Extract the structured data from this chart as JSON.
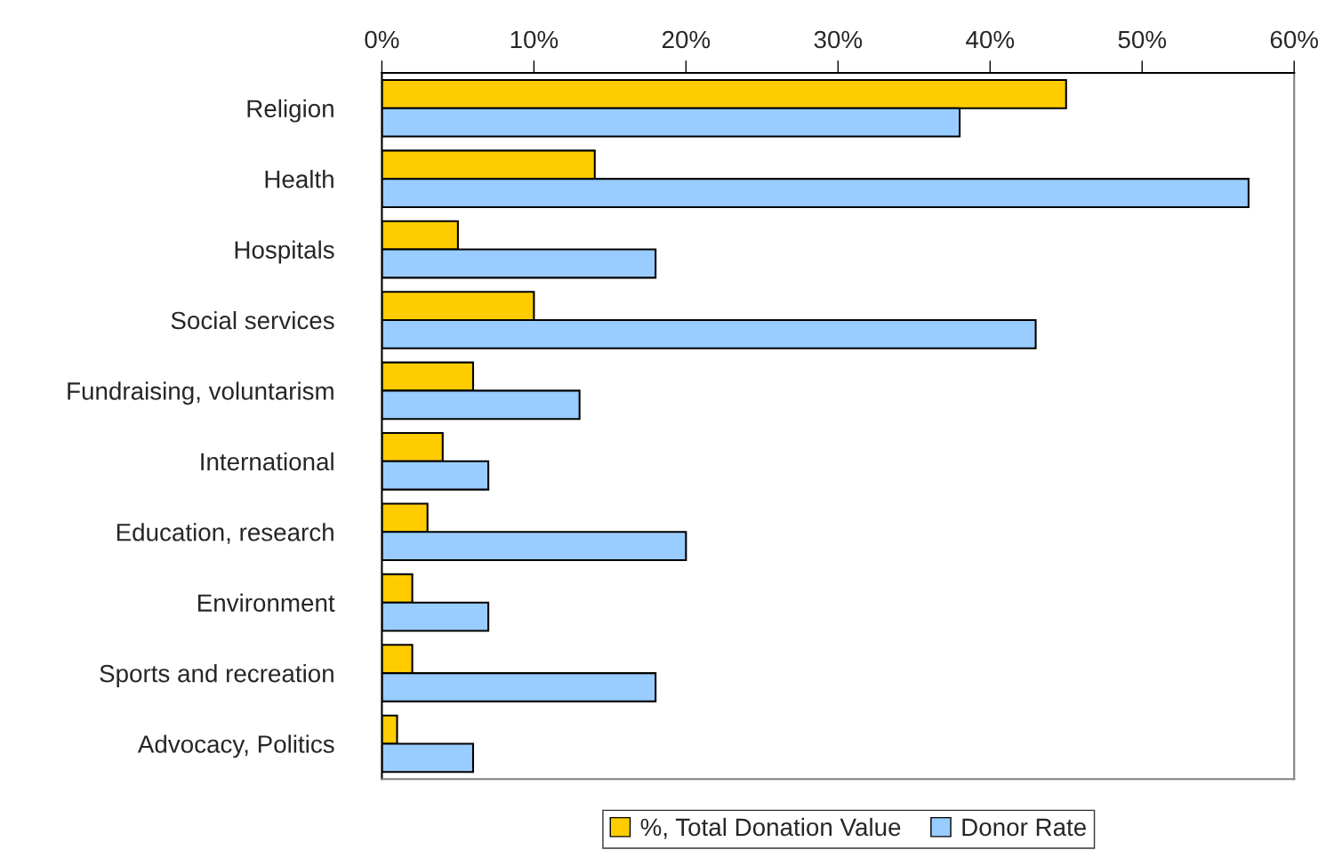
{
  "chart_data": {
    "type": "bar",
    "orientation": "horizontal",
    "categories": [
      "Religion",
      "Health",
      "Hospitals",
      "Social services",
      "Fundraising, voluntarism",
      "International",
      "Education, research",
      "Environment",
      "Sports and recreation",
      "Advocacy, Politics"
    ],
    "series": [
      {
        "name": "%, Total Donation Value",
        "color": "#ffcc00",
        "values": [
          45,
          14,
          5,
          10,
          6,
          4,
          3,
          2,
          2,
          1
        ]
      },
      {
        "name": "Donor Rate",
        "color": "#99ccff",
        "values": [
          38,
          57,
          18,
          43,
          13,
          7,
          20,
          7,
          18,
          6
        ]
      }
    ],
    "xlim": [
      0,
      60
    ],
    "xticks": [
      {
        "value": 0,
        "label": "0%"
      },
      {
        "value": 10,
        "label": "10%"
      },
      {
        "value": 20,
        "label": "20%"
      },
      {
        "value": 30,
        "label": "30%"
      },
      {
        "value": 40,
        "label": "40%"
      },
      {
        "value": 50,
        "label": "50%"
      },
      {
        "value": 60,
        "label": "60%"
      }
    ],
    "grid": false,
    "legend": "bottom"
  }
}
